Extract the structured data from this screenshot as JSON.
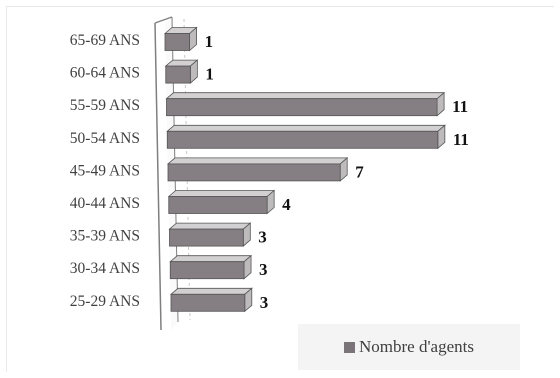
{
  "chart_data": {
    "type": "bar",
    "orientation": "horizontal",
    "style": "3d",
    "categories": [
      "65-69 ANS",
      "60-64 ANS",
      "55-59 ANS",
      "50-54 ANS",
      "45-49 ANS",
      "40-44 ANS",
      "35-39 ANS",
      "30-34 ANS",
      "25-29 ANS"
    ],
    "series": [
      {
        "name": "Nombre d'agents",
        "values": [
          1,
          1,
          11,
          11,
          7,
          4,
          3,
          3,
          3
        ]
      }
    ],
    "value_labels": [
      "1",
      "1",
      "11",
      "11",
      "7",
      "4",
      "3",
      "3",
      "3"
    ],
    "title": "",
    "xlabel": "",
    "ylabel": "",
    "xlim": [
      0,
      11
    ],
    "grid": true,
    "legend_position": "bottom-right",
    "colors": {
      "bar_front": "#857e82",
      "bar_top": "#d3d0d2",
      "bar_side": "#bebbbd",
      "axis": "#7f7f7f"
    }
  }
}
